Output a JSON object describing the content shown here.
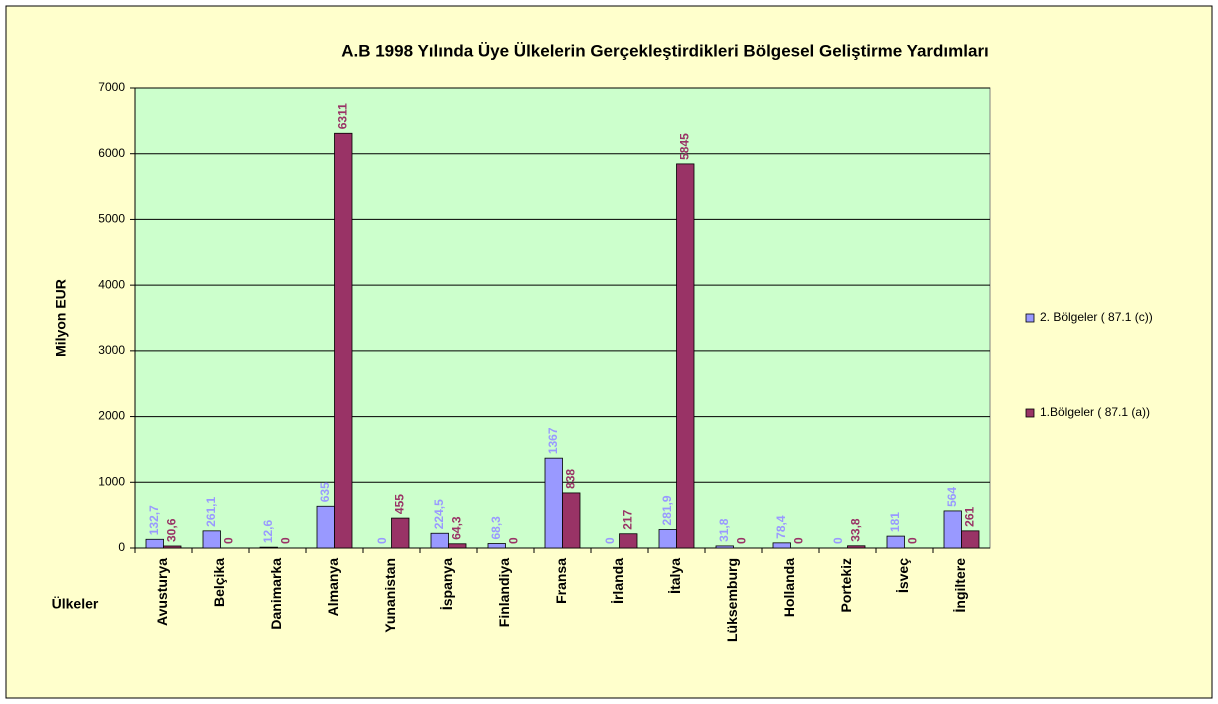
{
  "chart_data": {
    "type": "bar",
    "title": "A.B 1998 Yılında Üye Ülkelerin Gerçekleştirdikleri Bölgesel Geliştirme Yardımları",
    "ylabel": "Milyon EUR",
    "xlabel": "Ülkeler",
    "categories": [
      "Avusturya",
      "Belçika",
      "Danimarka",
      "Almanya",
      "Yunanistan",
      "İspanya",
      "Finlandiya",
      "Fransa",
      "İrlanda",
      "İtalya",
      "Lüksemburg",
      "Hollanda",
      "Portekiz",
      "İsveç",
      "İngiltere"
    ],
    "series": [
      {
        "name": "2. Bölgeler ( 87.1 (c))",
        "color": "#9999ff",
        "values": [
          132.7,
          261.1,
          12.6,
          635,
          0,
          224.5,
          68.3,
          1367,
          0,
          281.9,
          31.8,
          78.4,
          0,
          181,
          564
        ],
        "value_labels": [
          "132,7",
          "261,1",
          "12,6",
          "635",
          "0",
          "224,5",
          "68,3",
          "1367",
          "0",
          "281,9",
          "31,8",
          "78,4",
          "0",
          "181",
          "564"
        ]
      },
      {
        "name": "1.Bölgeler ( 87.1 (a))",
        "color": "#993366",
        "values": [
          30.6,
          0,
          0,
          6311,
          455,
          64.3,
          0,
          838,
          217,
          5845,
          0,
          0,
          33.8,
          0,
          261
        ],
        "value_labels": [
          "30,6",
          "0",
          "0",
          "6311",
          "455",
          "64,3",
          "0",
          "838",
          "217",
          "5845",
          "0",
          "0",
          "33,8",
          "0",
          "261"
        ]
      }
    ],
    "ylim": [
      0,
      7000
    ],
    "yticks": [
      0,
      1000,
      2000,
      3000,
      4000,
      5000,
      6000,
      7000
    ],
    "grid": true,
    "legend": "right",
    "plot_color": "#ccffcc"
  }
}
